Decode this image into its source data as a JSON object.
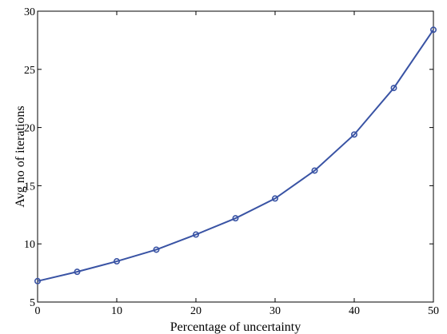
{
  "chart_data": {
    "type": "line",
    "title": "",
    "xlabel": "Percentage of uncertainty",
    "ylabel": "Avg no of iterations",
    "xlim": [
      0,
      50
    ],
    "ylim": [
      5,
      30
    ],
    "xticks": [
      0,
      10,
      20,
      30,
      40,
      50
    ],
    "yticks": [
      5,
      10,
      15,
      20,
      25,
      30
    ],
    "grid": false,
    "legend": "none",
    "series": [
      {
        "color": "#3953a4",
        "marker": "circle",
        "x": [
          0,
          5,
          10,
          15,
          20,
          25,
          30,
          35,
          40,
          45,
          50
        ],
        "y": [
          6.8,
          7.6,
          8.5,
          9.5,
          10.8,
          12.2,
          13.9,
          16.3,
          19.4,
          23.4,
          28.4
        ]
      }
    ]
  }
}
